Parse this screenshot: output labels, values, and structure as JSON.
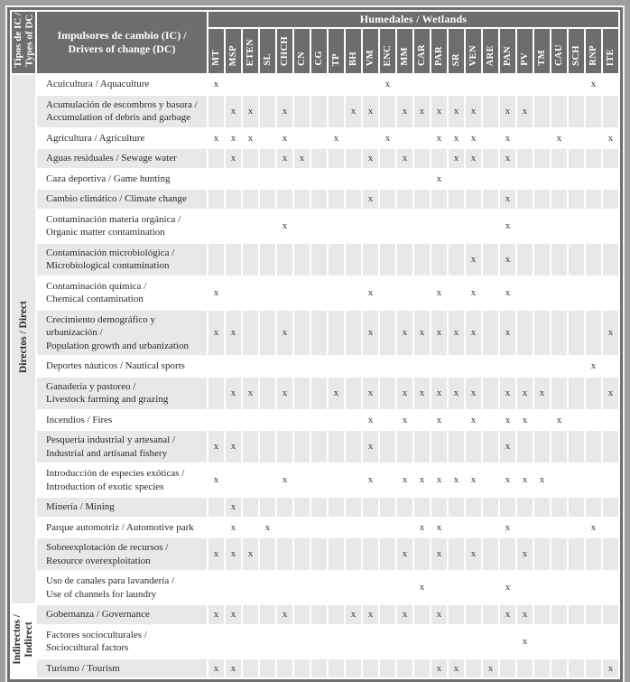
{
  "colors": {
    "page_background": "#9e9e9e",
    "table_border": "#6f6f6f",
    "header_background": "#6d6d6d",
    "header_text": "#ffffff",
    "stripe_row_background": "#e8e8e8",
    "body_text": "#2a2a2a"
  },
  "table": {
    "corner_header": {
      "line1": "Tipos de IC /",
      "line2": "Types of DC"
    },
    "drivers_header": {
      "line1": "Impulsores de cambio (IC) /",
      "line2": "Drivers of change (DC)"
    },
    "wetlands_header": "Humedales / Wetlands",
    "mark_glyph": "x",
    "columns": [
      "MT",
      "MSP",
      "ETEN",
      "SL",
      "CHCH",
      "CN",
      "CG",
      "TP",
      "BH",
      "VM",
      "ENC",
      "MM",
      "CAR",
      "PAR",
      "SR",
      "VEN",
      "ARE",
      "PAN",
      "PV",
      "TM",
      "CAU",
      "SCH",
      "RNP",
      "ITE"
    ],
    "groups": [
      {
        "id": "direct",
        "label_lines": [
          "Directos / Direct"
        ]
      },
      {
        "id": "indirect",
        "label_lines": [
          "Indirectos /",
          "Indirect"
        ]
      }
    ],
    "rows": [
      {
        "group": "direct",
        "label_lines": [
          "Acuicultura / Aquaculture"
        ],
        "marks": [
          "MT",
          "ENC",
          "RNP"
        ]
      },
      {
        "group": "direct",
        "label_lines": [
          "Acumulación de escombros y basura /",
          "Accumulation of debris and garbage"
        ],
        "marks": [
          "MSP",
          "ETEN",
          "CHCH",
          "BH",
          "VM",
          "MM",
          "CAR",
          "PAR",
          "SR",
          "VEN",
          "PAN",
          "PV"
        ]
      },
      {
        "group": "direct",
        "label_lines": [
          "Agricultura / Agriculture"
        ],
        "marks": [
          "MT",
          "MSP",
          "ETEN",
          "CHCH",
          "TP",
          "ENC",
          "PAR",
          "SR",
          "VEN",
          "PAN",
          "CAU",
          "ITE"
        ]
      },
      {
        "group": "direct",
        "label_lines": [
          "Aguas residuales / Sewage water"
        ],
        "marks": [
          "MSP",
          "CHCH",
          "CN",
          "VM",
          "MM",
          "SR",
          "VEN",
          "PAN"
        ]
      },
      {
        "group": "direct",
        "label_lines": [
          "Caza deportiva / Game hunting"
        ],
        "marks": [
          "PAR"
        ]
      },
      {
        "group": "direct",
        "label_lines": [
          "Cambio climático / Climate change"
        ],
        "marks": [
          "VM",
          "PAN"
        ]
      },
      {
        "group": "direct",
        "label_lines": [
          "Contaminación materia orgánica /",
          "Organic matter contamination"
        ],
        "marks": [
          "CHCH",
          "PAN"
        ]
      },
      {
        "group": "direct",
        "label_lines": [
          "Contaminación microbiológica /",
          "Microbiological contamination"
        ],
        "marks": [
          "VEN",
          "PAN"
        ]
      },
      {
        "group": "direct",
        "label_lines": [
          "Contaminación química /",
          "Chemical contamination"
        ],
        "marks": [
          "MT",
          "VM",
          "PAR",
          "VEN",
          "PAN"
        ]
      },
      {
        "group": "direct",
        "label_lines": [
          "Crecimiento demográfico y",
          "urbanización /",
          "Population growth and urbanization"
        ],
        "marks": [
          "MT",
          "MSP",
          "CHCH",
          "VM",
          "MM",
          "CAR",
          "PAR",
          "SR",
          "VEN",
          "PAN",
          "ITE"
        ]
      },
      {
        "group": "direct",
        "label_lines": [
          "Deportes náuticos / Nautical sports"
        ],
        "marks": [
          "RNP"
        ]
      },
      {
        "group": "direct",
        "label_lines": [
          "Ganadería y pastoreo /",
          "Livestock farming and grazing"
        ],
        "marks": [
          "MSP",
          "ETEN",
          "CHCH",
          "TP",
          "VM",
          "MM",
          "CAR",
          "PAR",
          "SR",
          "VEN",
          "PAN",
          "PV",
          "TM",
          "ITE"
        ]
      },
      {
        "group": "direct",
        "label_lines": [
          "Incendios / Fires"
        ],
        "marks": [
          "VM",
          "MM",
          "PAR",
          "VEN",
          "PAN",
          "PV",
          "CAU"
        ]
      },
      {
        "group": "direct",
        "label_lines": [
          "Pesquería industrial y artesanal /",
          "Industrial and artisanal fishery"
        ],
        "marks": [
          "MT",
          "MSP",
          "VM",
          "PAN"
        ]
      },
      {
        "group": "direct",
        "label_lines": [
          "Introducción de especies exóticas /",
          "Introduction of exotic species"
        ],
        "marks": [
          "MT",
          "CHCH",
          "VM",
          "MM",
          "CAR",
          "PAR",
          "SR",
          "VEN",
          "PAN",
          "PV",
          "TM"
        ]
      },
      {
        "group": "direct",
        "label_lines": [
          "Minería / Mining"
        ],
        "marks": [
          "MSP"
        ]
      },
      {
        "group": "direct",
        "label_lines": [
          "Parque automotriz / Automotive park"
        ],
        "marks": [
          "MSP",
          "SL",
          "CAR",
          "PAR",
          "PAN",
          "RNP"
        ]
      },
      {
        "group": "direct",
        "label_lines": [
          "Sobreexplotación de recursos /",
          "Resource overexploitation"
        ],
        "marks": [
          "MT",
          "MSP",
          "ETEN",
          "MM",
          "PAR",
          "VEN",
          "PV"
        ]
      },
      {
        "group": "direct",
        "label_lines": [
          "Uso de canales para lavandería /",
          "Use of channels for laundry"
        ],
        "marks": [
          "CAR",
          "PAN"
        ]
      },
      {
        "group": "indirect",
        "label_lines": [
          "Gobernanza / Governance"
        ],
        "marks": [
          "MT",
          "MSP",
          "CHCH",
          "BH",
          "VM",
          "MM",
          "PAR",
          "PAN",
          "PV"
        ]
      },
      {
        "group": "indirect",
        "label_lines": [
          "Factores socioculturales /",
          "Sociocultural factors"
        ],
        "marks": [
          "PV"
        ]
      },
      {
        "group": "indirect",
        "label_lines": [
          "Turismo / Tourism"
        ],
        "marks": [
          "MT",
          "MSP",
          "PAR",
          "SR",
          "ARE",
          "ITE"
        ]
      }
    ]
  }
}
